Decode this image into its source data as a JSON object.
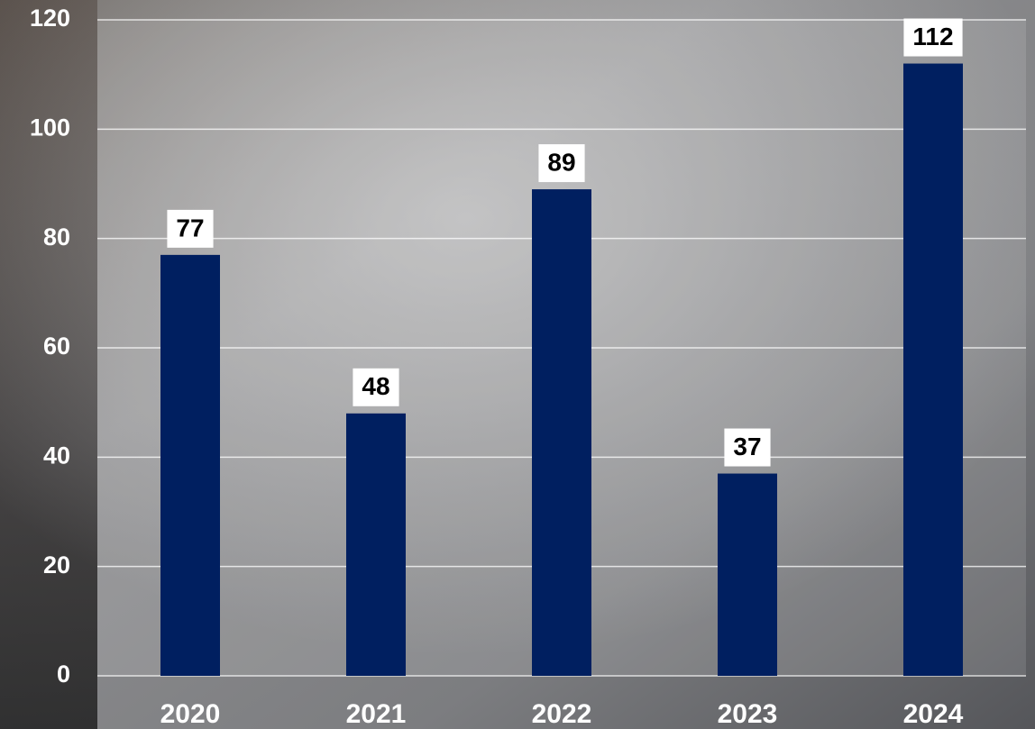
{
  "chart_data": {
    "type": "bar",
    "categories": [
      "2020",
      "2021",
      "2022",
      "2023",
      "2024"
    ],
    "values": [
      77,
      48,
      89,
      37,
      112
    ],
    "color": "#001f60",
    "ylim": [
      0,
      120
    ],
    "yticks": [
      0,
      20,
      40,
      60,
      80,
      100,
      120
    ],
    "grid": true
  }
}
